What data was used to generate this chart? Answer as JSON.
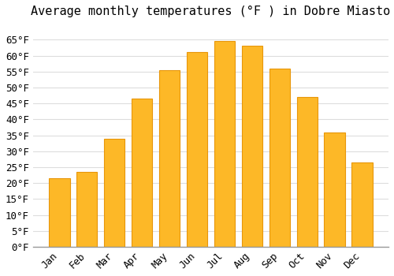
{
  "title": "Average monthly temperatures (°F ) in Dobre Miasto",
  "months": [
    "Jan",
    "Feb",
    "Mar",
    "Apr",
    "May",
    "Jun",
    "Jul",
    "Aug",
    "Sep",
    "Oct",
    "Nov",
    "Dec"
  ],
  "values": [
    21.5,
    23.5,
    34.0,
    46.5,
    55.5,
    61.0,
    64.5,
    63.0,
    56.0,
    47.0,
    36.0,
    26.5
  ],
  "bar_color": "#FDB827",
  "bar_edge_color": "#E8960A",
  "background_color": "#FFFFFF",
  "grid_color": "#DDDDDD",
  "ylim": [
    0,
    70
  ],
  "yticks": [
    0,
    5,
    10,
    15,
    20,
    25,
    30,
    35,
    40,
    45,
    50,
    55,
    60,
    65
  ],
  "title_fontsize": 11,
  "tick_fontsize": 9,
  "tick_font": "monospace"
}
